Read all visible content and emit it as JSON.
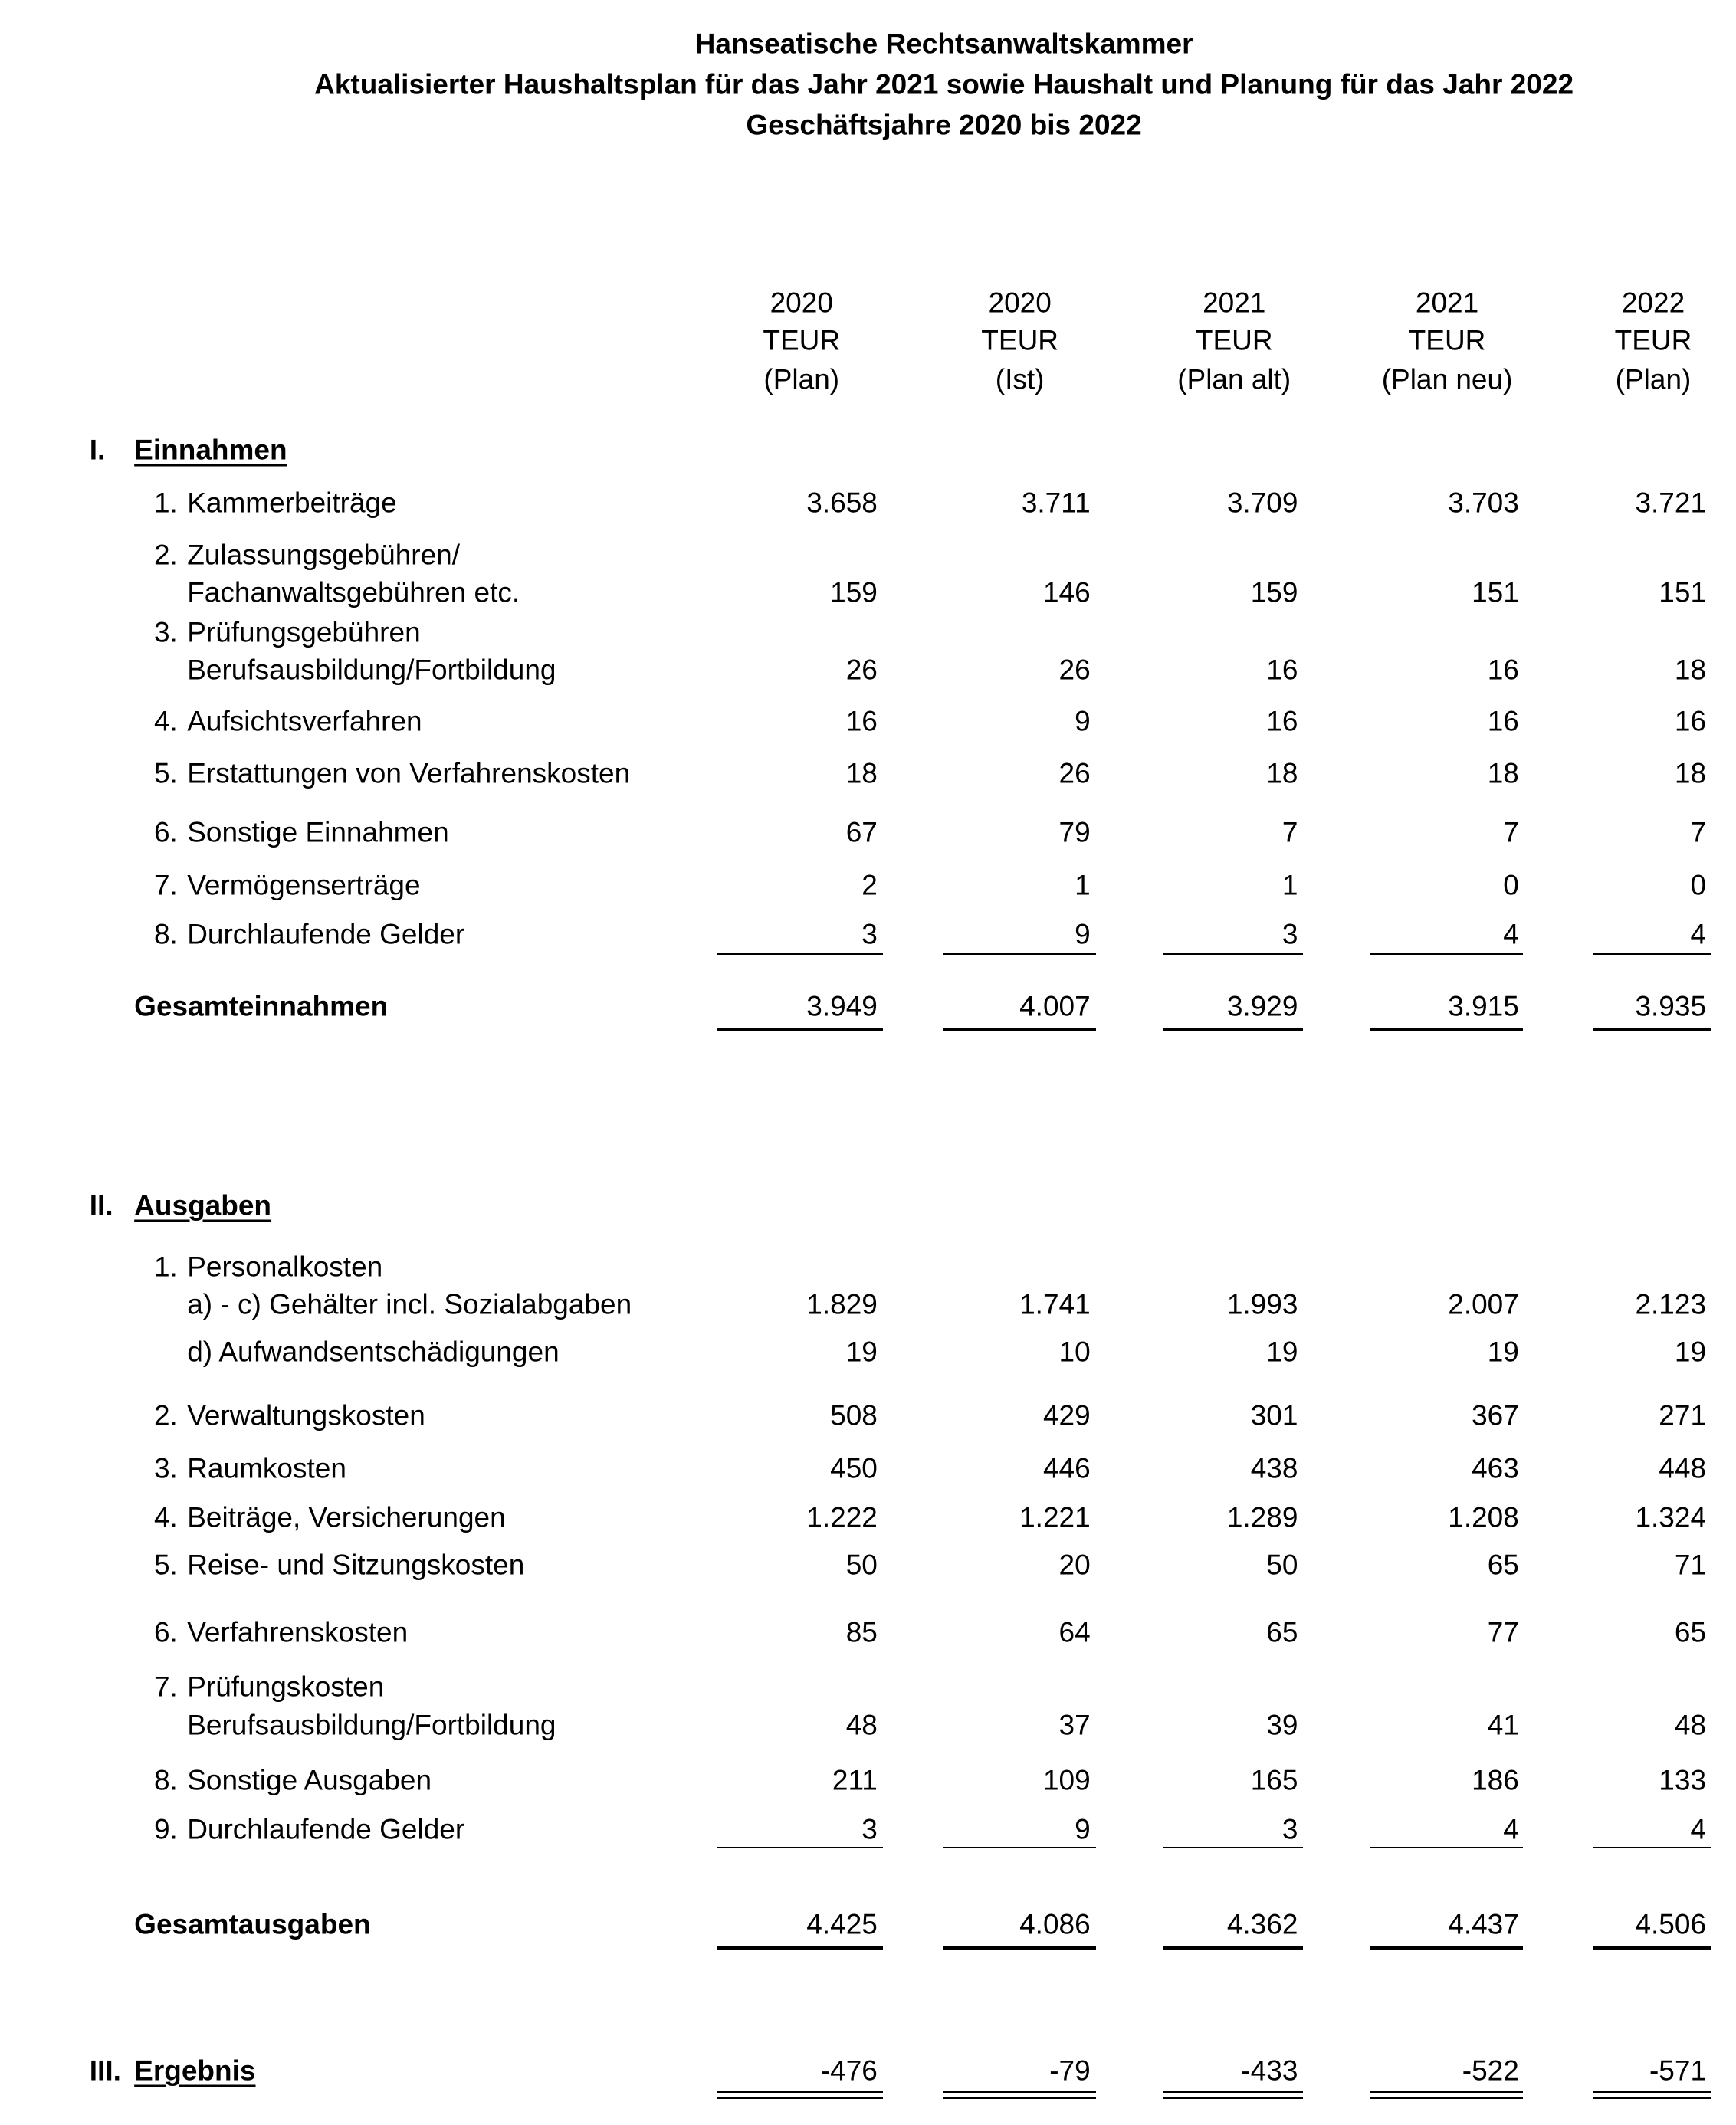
{
  "header": {
    "title": "Hanseatische Rechtsanwaltskammer",
    "subtitle": "Aktualisierter Haushaltsplan für das Jahr 2021 sowie Haushalt und Planung für das Jahr 2022",
    "period": "Geschäftsjahre 2020 bis 2022"
  },
  "columns": [
    {
      "year": "2020",
      "unit": "TEUR",
      "kind": "(Plan)"
    },
    {
      "year": "2020",
      "unit": "TEUR",
      "kind": "(Ist)"
    },
    {
      "year": "2021",
      "unit": "TEUR",
      "kind": "(Plan alt)"
    },
    {
      "year": "2021",
      "unit": "TEUR",
      "kind": "(Plan neu)"
    },
    {
      "year": "2022",
      "unit": "TEUR",
      "kind": "(Plan)"
    }
  ],
  "sections": [
    {
      "number": "I.",
      "title": "Einnahmen",
      "items": [
        {
          "number": "1.",
          "label": [
            "Kammerbeiträge"
          ],
          "values": [
            "3.658",
            "3.711",
            "3.709",
            "3.703",
            "3.721"
          ]
        },
        {
          "number": "2.",
          "label": [
            "Zulassungsgebühren/",
            "Fachanwaltsgebühren etc."
          ],
          "values": [
            "159",
            "146",
            "159",
            "151",
            "151"
          ]
        },
        {
          "number": "3.",
          "label": [
            "Prüfungsgebühren",
            "Berufsausbildung/Fortbildung"
          ],
          "values": [
            "26",
            "26",
            "16",
            "16",
            "18"
          ]
        },
        {
          "number": "4.",
          "label": [
            "Aufsichtsverfahren"
          ],
          "values": [
            "16",
            "9",
            "16",
            "16",
            "16"
          ]
        },
        {
          "number": "5.",
          "label": [
            "Erstattungen von Verfahrenskosten"
          ],
          "values": [
            "18",
            "26",
            "18",
            "18",
            "18"
          ]
        },
        {
          "number": "6.",
          "label": [
            "Sonstige Einnahmen"
          ],
          "values": [
            "67",
            "79",
            "7",
            "7",
            "7"
          ]
        },
        {
          "number": "7.",
          "label": [
            "Vermögenserträge"
          ],
          "values": [
            "2",
            "1",
            "1",
            "0",
            "0"
          ]
        },
        {
          "number": "8.",
          "label": [
            "Durchlaufende Gelder"
          ],
          "values": [
            "3",
            "9",
            "3",
            "4",
            "4"
          ]
        }
      ],
      "total": {
        "label": "Gesamteinnahmen",
        "values": [
          "3.949",
          "4.007",
          "3.929",
          "3.915",
          "3.935"
        ]
      }
    },
    {
      "number": "II.",
      "title": "Ausgaben",
      "items": [
        {
          "number": "1.",
          "label": [
            "Personalkosten"
          ],
          "subitems": [
            {
              "label": "a) - c) Gehälter incl. Sozialabgaben",
              "values": [
                "1.829",
                "1.741",
                "1.993",
                "2.007",
                "2.123"
              ]
            },
            {
              "label": "d) Aufwandsentschädigungen",
              "values": [
                "19",
                "10",
                "19",
                "19",
                "19"
              ]
            }
          ]
        },
        {
          "number": "2.",
          "label": [
            "Verwaltungskosten"
          ],
          "values": [
            "508",
            "429",
            "301",
            "367",
            "271"
          ]
        },
        {
          "number": "3.",
          "label": [
            "Raumkosten"
          ],
          "values": [
            "450",
            "446",
            "438",
            "463",
            "448"
          ]
        },
        {
          "number": "4.",
          "label": [
            "Beiträge, Versicherungen"
          ],
          "values": [
            "1.222",
            "1.221",
            "1.289",
            "1.208",
            "1.324"
          ]
        },
        {
          "number": "5.",
          "label": [
            "Reise- und Sitzungskosten"
          ],
          "values": [
            "50",
            "20",
            "50",
            "65",
            "71"
          ]
        },
        {
          "number": "6.",
          "label": [
            "Verfahrenskosten"
          ],
          "values": [
            "85",
            "64",
            "65",
            "77",
            "65"
          ]
        },
        {
          "number": "7.",
          "label": [
            "Prüfungskosten",
            "Berufsausbildung/Fortbildung"
          ],
          "values": [
            "48",
            "37",
            "39",
            "41",
            "48"
          ]
        },
        {
          "number": "8.",
          "label": [
            "Sonstige Ausgaben"
          ],
          "values": [
            "211",
            "109",
            "165",
            "186",
            "133"
          ]
        },
        {
          "number": "9.",
          "label": [
            "Durchlaufende Gelder"
          ],
          "values": [
            "3",
            "9",
            "3",
            "4",
            "4"
          ]
        }
      ],
      "total": {
        "label": "Gesamtausgaben",
        "values": [
          "4.425",
          "4.086",
          "4.362",
          "4.437",
          "4.506"
        ]
      }
    }
  ],
  "result": {
    "number": "III.",
    "title": "Ergebnis",
    "values": [
      "-476",
      "-79",
      "-433",
      "-522",
      "-571"
    ]
  }
}
